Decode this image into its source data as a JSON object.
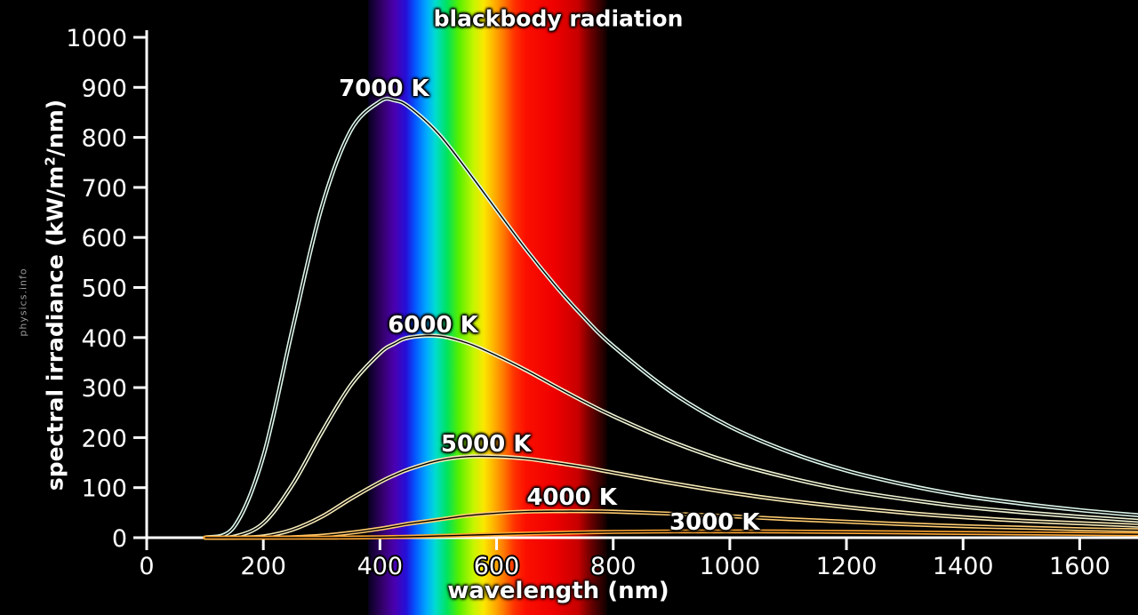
{
  "watermark": "physics.info",
  "colors": {
    "background": "#000000",
    "axis": "#ffffff",
    "text": "#ffffff"
  },
  "chart_data": {
    "type": "line",
    "title": "blackbody radiation",
    "xlabel": "wavelength (nm)",
    "ylabel_pre": "spectral irradiance (kW/m",
    "ylabel_sup": "2",
    "ylabel_post": "/nm)",
    "xlim": [
      0,
      1700
    ],
    "ylim": [
      0,
      1000
    ],
    "grid": false,
    "x_ticks": [
      0,
      200,
      400,
      600,
      800,
      1000,
      1200,
      1400,
      1600
    ],
    "y_ticks": [
      0,
      100,
      200,
      300,
      400,
      500,
      600,
      700,
      800,
      900,
      1000
    ],
    "x": [
      100,
      150,
      200,
      250,
      300,
      350,
      400,
      425,
      450,
      500,
      550,
      600,
      650,
      700,
      750,
      800,
      900,
      1000,
      1100,
      1200,
      1300,
      1400,
      1500,
      1600,
      1700
    ],
    "series": [
      {
        "name": "7000 K",
        "color": "#dcf5e9",
        "values": [
          0.2,
          22,
          163,
          417,
          660,
          814,
          872,
          874,
          861,
          808,
          734,
          655,
          577,
          505,
          440,
          383,
          291,
          222,
          172,
          134,
          106,
          84,
          68,
          55,
          45
        ],
        "label_at": {
          "x": 407,
          "y": 897
        }
      },
      {
        "name": "6000 K",
        "color": "#eef2d2",
        "values": [
          0,
          2.3,
          29,
          106,
          210,
          305,
          369,
          388,
          400,
          403,
          389,
          364,
          335,
          303,
          272,
          243,
          192,
          151,
          120,
          95,
          77,
          62,
          51,
          42,
          34
        ],
        "label_at": {
          "x": 491,
          "y": 425
        }
      },
      {
        "name": "5000 K",
        "color": "#f6e8b4",
        "values": [
          0,
          0.1,
          2.7,
          16,
          42,
          78,
          111,
          125,
          137,
          154,
          162,
          162,
          158,
          150,
          141,
          130,
          109,
          90,
          74,
          61,
          50,
          41,
          34,
          29,
          24
        ],
        "label_at": {
          "x": 582,
          "y": 187
        }
      },
      {
        "name": "4000 K",
        "color": "#ffcc70",
        "values": [
          0,
          0,
          0.1,
          0.9,
          3.9,
          9.9,
          18,
          23,
          28,
          36,
          44,
          49,
          52,
          53,
          53,
          52,
          48,
          43,
          37,
          32,
          27,
          23,
          20,
          17,
          15
        ],
        "label_at": {
          "x": 729,
          "y": 80
        }
      },
      {
        "name": "3000 K",
        "color": "#ffa733",
        "values": [
          0,
          0,
          0,
          0,
          0.1,
          0.3,
          0.9,
          1.4,
          1.9,
          3.3,
          4.9,
          6.6,
          8.2,
          9.5,
          10.7,
          11.5,
          12.5,
          12.6,
          12.2,
          11.4,
          10.5,
          9.5,
          8.5,
          7.6,
          6.7
        ],
        "label_at": {
          "x": 974,
          "y": 30
        }
      }
    ],
    "spectrum_band": {
      "range_nm": [
        380,
        790
      ],
      "stops": [
        [
          380,
          "#08001f"
        ],
        [
          405,
          "#35006d"
        ],
        [
          425,
          "#4a00b0"
        ],
        [
          445,
          "#2410d8"
        ],
        [
          460,
          "#0455ff"
        ],
        [
          480,
          "#00aaff"
        ],
        [
          495,
          "#00dcd0"
        ],
        [
          515,
          "#00e35f"
        ],
        [
          535,
          "#55ef00"
        ],
        [
          560,
          "#c3f500"
        ],
        [
          578,
          "#fae800"
        ],
        [
          595,
          "#ffb400"
        ],
        [
          612,
          "#ff7a00"
        ],
        [
          630,
          "#ff3300"
        ],
        [
          650,
          "#fb0f00"
        ],
        [
          700,
          "#ee0000"
        ],
        [
          740,
          "#c70000"
        ],
        [
          762,
          "#6a0000"
        ],
        [
          790,
          "#0c0000"
        ]
      ]
    }
  }
}
